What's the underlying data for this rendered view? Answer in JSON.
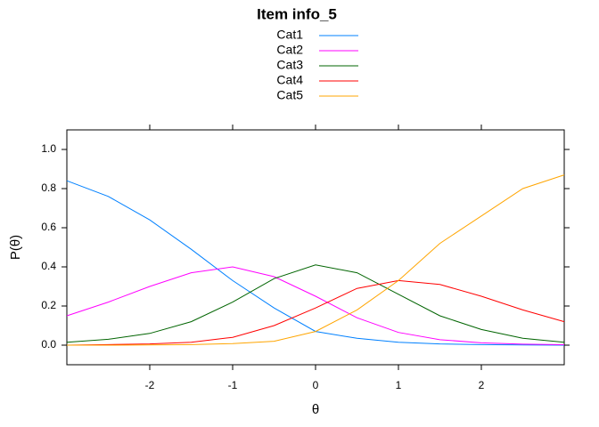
{
  "chart_data": {
    "type": "line",
    "title": "Item info_5",
    "x_label": "θ",
    "y_label": "P(θ)",
    "x": [
      -3,
      -2.5,
      -2,
      -1.5,
      -1,
      -0.5,
      0,
      0.5,
      1,
      1.5,
      2,
      2.5,
      3
    ],
    "series": [
      {
        "name": "Cat1",
        "color": "#0080ff",
        "values": [
          0.84,
          0.76,
          0.64,
          0.49,
          0.33,
          0.19,
          0.07,
          0.035,
          0.015,
          0.006,
          0.003,
          0.001,
          0.0
        ]
      },
      {
        "name": "Cat2",
        "color": "#ff00ff",
        "values": [
          0.15,
          0.22,
          0.3,
          0.37,
          0.4,
          0.35,
          0.25,
          0.14,
          0.065,
          0.028,
          0.012,
          0.005,
          0.002
        ]
      },
      {
        "name": "Cat3",
        "color": "#006400",
        "values": [
          0.015,
          0.03,
          0.06,
          0.12,
          0.22,
          0.34,
          0.41,
          0.37,
          0.26,
          0.15,
          0.08,
          0.035,
          0.015
        ]
      },
      {
        "name": "Cat4",
        "color": "#ff0000",
        "values": [
          0.0,
          0.003,
          0.006,
          0.015,
          0.04,
          0.1,
          0.19,
          0.29,
          0.33,
          0.31,
          0.25,
          0.18,
          0.12
        ]
      },
      {
        "name": "Cat5",
        "color": "#ffa500",
        "values": [
          0.0,
          0.0,
          0.001,
          0.003,
          0.008,
          0.02,
          0.07,
          0.18,
          0.33,
          0.52,
          0.66,
          0.8,
          0.87
        ]
      }
    ],
    "xlim": [
      -3,
      3
    ],
    "ylim": [
      -0.1,
      1.1
    ],
    "xticks": [
      -2,
      -1,
      0,
      1,
      2
    ],
    "yticks": [
      {
        "value": 0,
        "label": "0.0"
      },
      0.2,
      0.4,
      0.6,
      0.8,
      {
        "value": 1,
        "label": "1.0"
      }
    ],
    "grid": false
  }
}
